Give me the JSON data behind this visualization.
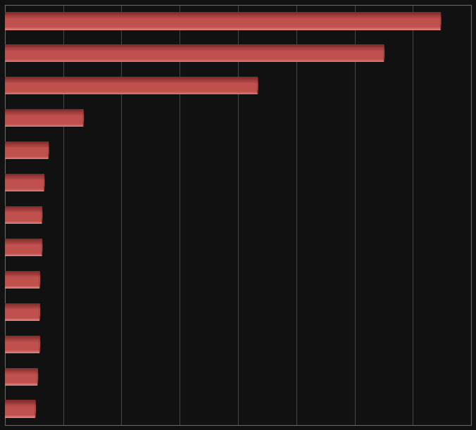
{
  "values": [
    100,
    87,
    58,
    18,
    10,
    9,
    8.5,
    8.5,
    8.0,
    8.0,
    8.0,
    7.5,
    7.0
  ],
  "bar_color_main": "#c0504d",
  "bar_color_light": "#d4736f",
  "bar_color_top": "#cc6663",
  "bar_color_dark": "#8b3535",
  "background_color": "#111111",
  "grid_color": "#666666",
  "bar_height": 0.55,
  "xlim": [
    0,
    107
  ],
  "n_gridlines": 9,
  "figsize": [
    6.76,
    6.11
  ],
  "dpi": 100
}
